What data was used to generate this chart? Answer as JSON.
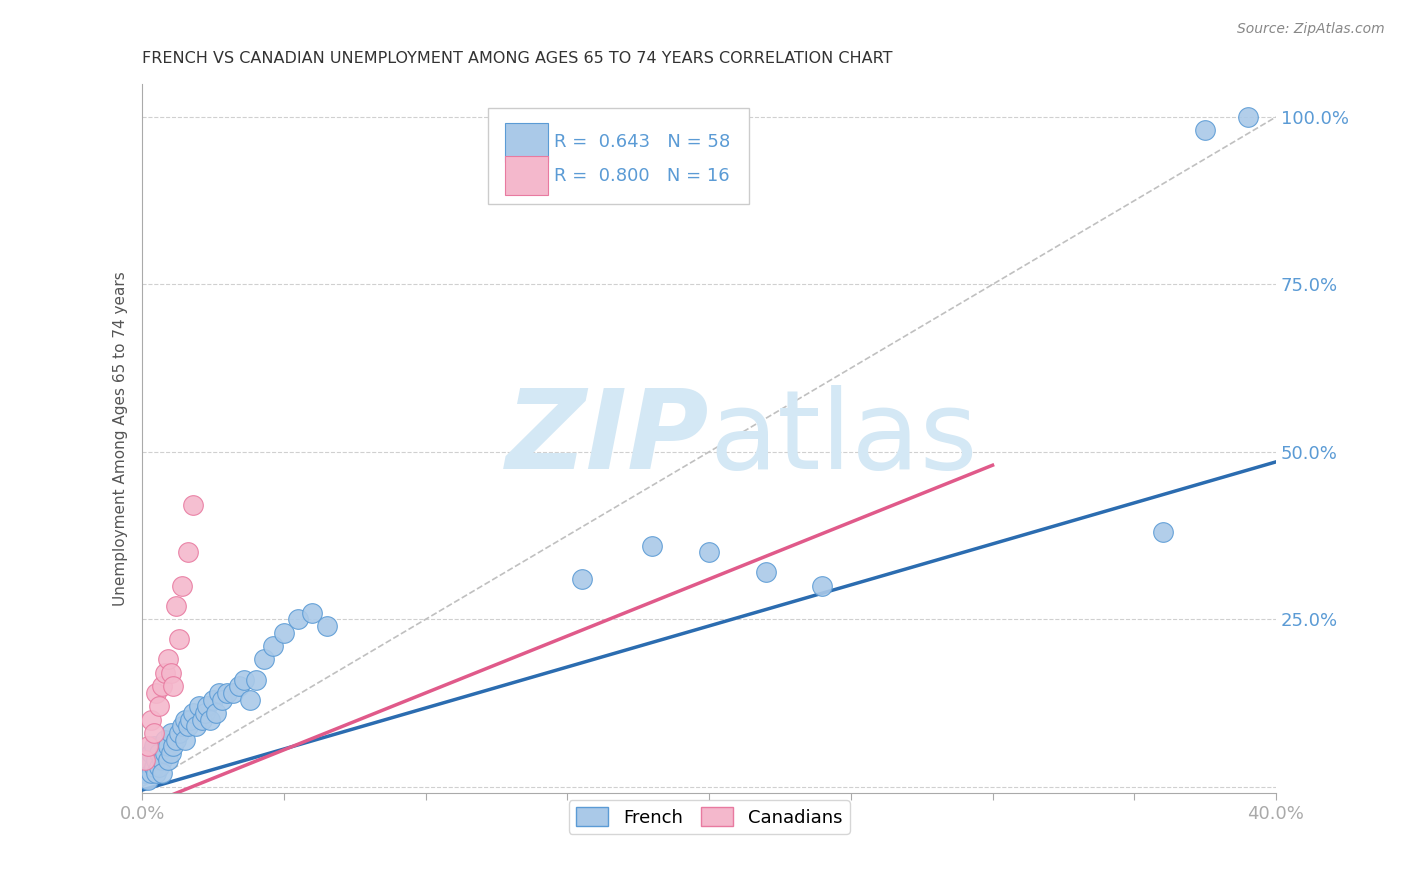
{
  "title": "FRENCH VS CANADIAN UNEMPLOYMENT AMONG AGES 65 TO 74 YEARS CORRELATION CHART",
  "source": "Source: ZipAtlas.com",
  "ylabel_label": "Unemployment Among Ages 65 to 74 years",
  "xlim": [
    0.0,
    0.4
  ],
  "ylim": [
    -0.01,
    1.05
  ],
  "french_R": 0.643,
  "french_N": 58,
  "canadian_R": 0.8,
  "canadian_N": 16,
  "french_color": "#aac9e8",
  "canadian_color": "#f4b8cc",
  "french_edge_color": "#5b9bd5",
  "canadian_edge_color": "#e87aa0",
  "french_line_color": "#2b6cb0",
  "canadian_line_color": "#e05a8a",
  "diagonal_color": "#c0c0c0",
  "grid_color": "#d0d0d0",
  "title_color": "#333333",
  "tick_label_color": "#5b9bd5",
  "watermark_color": "#d4e8f5",
  "french_x": [
    0.001,
    0.002,
    0.002,
    0.003,
    0.003,
    0.004,
    0.004,
    0.005,
    0.005,
    0.006,
    0.006,
    0.007,
    0.007,
    0.008,
    0.008,
    0.009,
    0.009,
    0.01,
    0.01,
    0.011,
    0.012,
    0.013,
    0.014,
    0.015,
    0.015,
    0.016,
    0.017,
    0.018,
    0.019,
    0.02,
    0.021,
    0.022,
    0.023,
    0.024,
    0.025,
    0.026,
    0.027,
    0.028,
    0.03,
    0.032,
    0.034,
    0.036,
    0.038,
    0.04,
    0.043,
    0.046,
    0.05,
    0.055,
    0.06,
    0.065,
    0.155,
    0.18,
    0.2,
    0.22,
    0.24,
    0.36,
    0.375,
    0.39
  ],
  "french_y": [
    0.02,
    0.01,
    0.04,
    0.02,
    0.05,
    0.03,
    0.06,
    0.04,
    0.02,
    0.05,
    0.03,
    0.04,
    0.02,
    0.05,
    0.07,
    0.04,
    0.06,
    0.05,
    0.08,
    0.06,
    0.07,
    0.08,
    0.09,
    0.07,
    0.1,
    0.09,
    0.1,
    0.11,
    0.09,
    0.12,
    0.1,
    0.11,
    0.12,
    0.1,
    0.13,
    0.11,
    0.14,
    0.13,
    0.14,
    0.14,
    0.15,
    0.16,
    0.13,
    0.16,
    0.19,
    0.21,
    0.23,
    0.25,
    0.26,
    0.24,
    0.31,
    0.36,
    0.35,
    0.32,
    0.3,
    0.38,
    0.98,
    1.0
  ],
  "canadian_x": [
    0.001,
    0.002,
    0.003,
    0.004,
    0.005,
    0.006,
    0.007,
    0.008,
    0.009,
    0.01,
    0.011,
    0.012,
    0.013,
    0.014,
    0.016,
    0.018
  ],
  "canadian_y": [
    0.04,
    0.06,
    0.1,
    0.08,
    0.14,
    0.12,
    0.15,
    0.17,
    0.19,
    0.17,
    0.15,
    0.27,
    0.22,
    0.3,
    0.35,
    0.42
  ],
  "french_line_x": [
    0.0,
    0.4
  ],
  "french_line_y": [
    -0.005,
    0.485
  ],
  "canadian_line_x": [
    0.0,
    0.3
  ],
  "canadian_line_y": [
    -0.03,
    0.48
  ]
}
